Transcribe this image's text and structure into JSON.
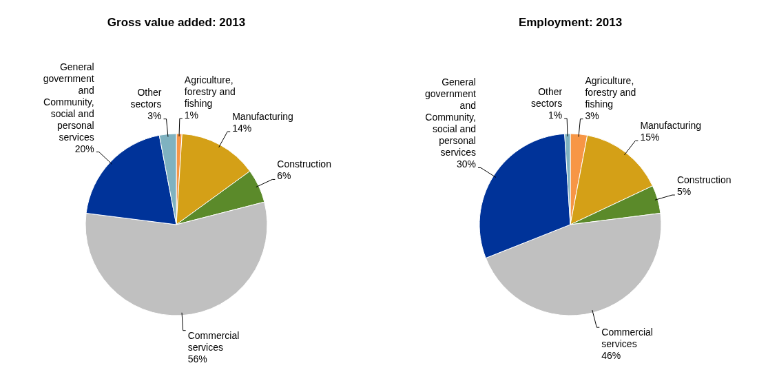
{
  "chart_data": [
    {
      "type": "pie",
      "title": "Gross value added: 2013",
      "categories": [
        "Agriculture, forestry and fishing",
        "Manufacturing",
        "Construction",
        "Commercial services",
        "General government and Community, social and personal services",
        "Other sectors"
      ],
      "values": [
        1,
        14,
        6,
        56,
        20,
        3
      ],
      "colors": [
        "#f79646",
        "#d4a017",
        "#5b8a2a",
        "#c0c0c0",
        "#003399",
        "#7fb2c0"
      ],
      "value_labels": [
        "1%",
        "14%",
        "6%",
        "56%",
        "20%",
        "3%"
      ]
    },
    {
      "type": "pie",
      "title": "Employment: 2013",
      "categories": [
        "Agriculture, forestry and fishing",
        "Manufacturing",
        "Construction",
        "Commercial services",
        "General government and Community, social and personal services",
        "Other sectors"
      ],
      "values": [
        3,
        15,
        5,
        46,
        30,
        1
      ],
      "colors": [
        "#f79646",
        "#d4a017",
        "#5b8a2a",
        "#c0c0c0",
        "#003399",
        "#7fb2c0"
      ],
      "value_labels": [
        "3%",
        "15%",
        "5%",
        "46%",
        "30%",
        "1%"
      ]
    }
  ]
}
